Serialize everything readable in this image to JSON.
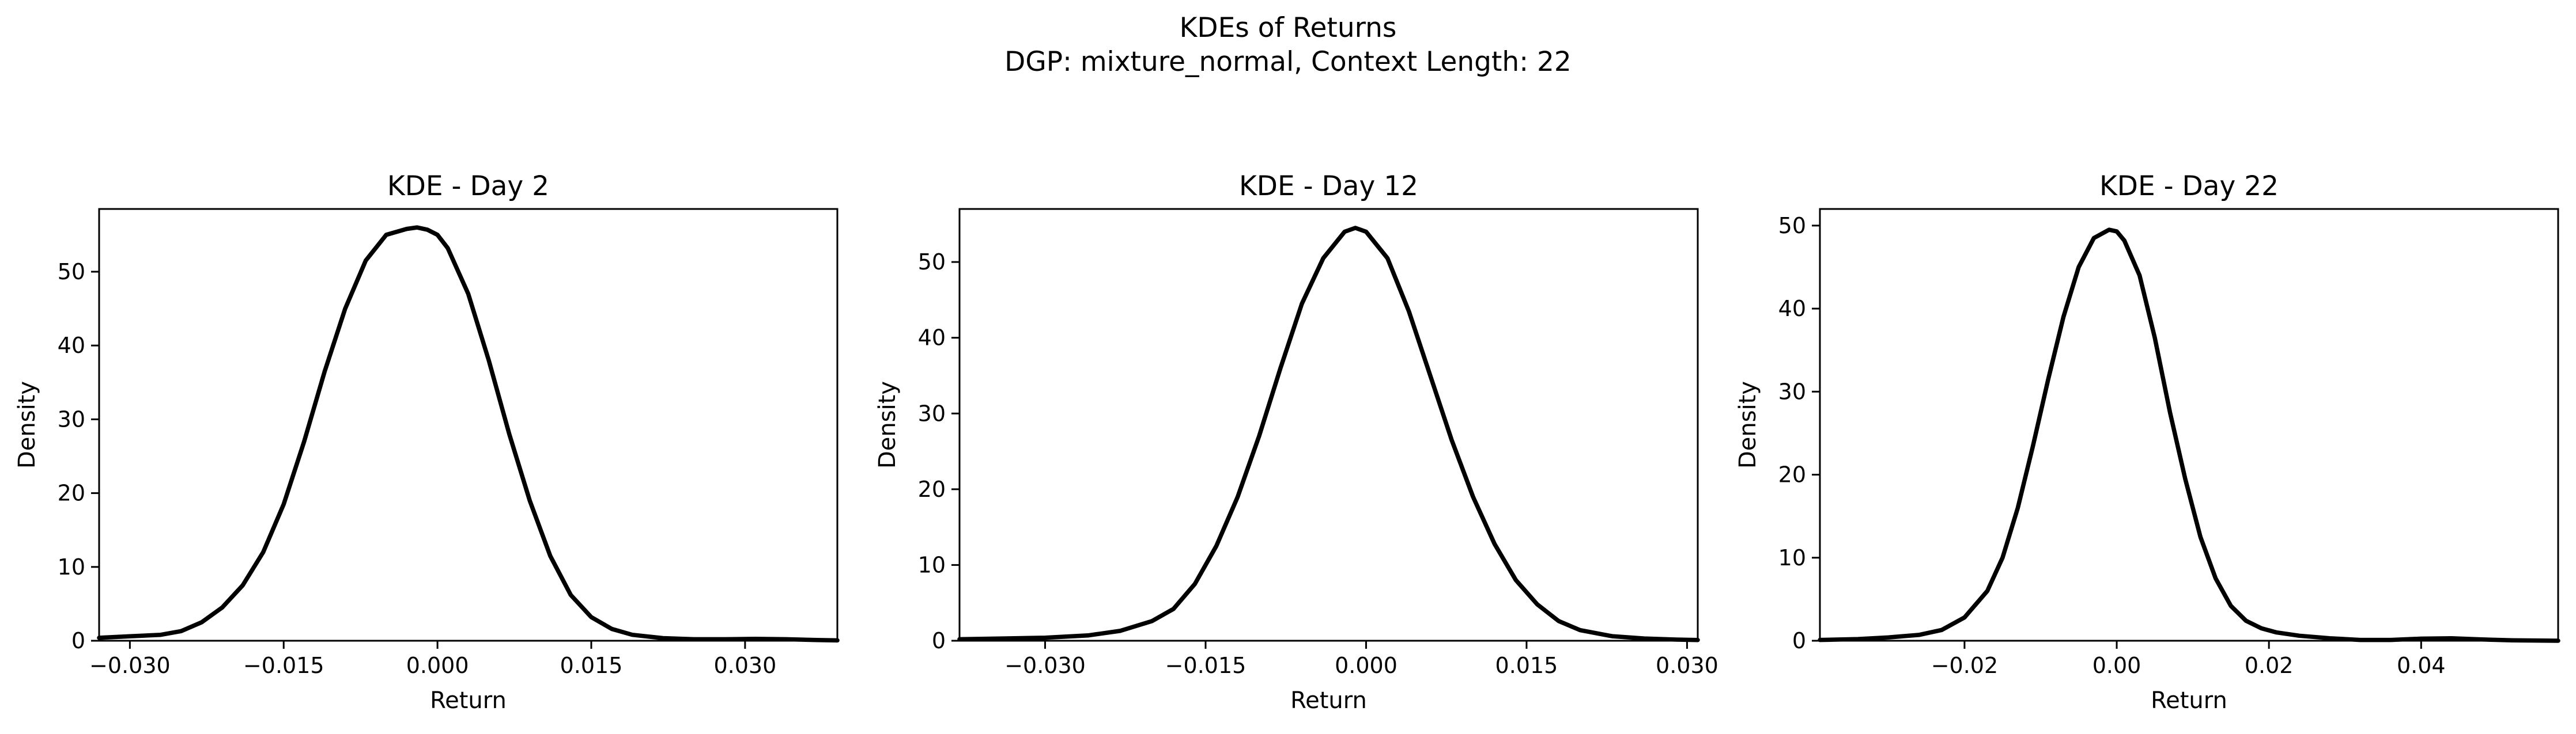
{
  "title_line1": "KDEs of Returns",
  "title_line2": "DGP: mixture_normal, Context Length: 22",
  "line_color": "#000000",
  "chart_data": [
    {
      "type": "line",
      "title": "KDE - Day 2",
      "xlabel": "Return",
      "ylabel": "Density",
      "xlim": [
        -0.033,
        0.039
      ],
      "ylim": [
        0,
        58.5
      ],
      "xticks": [
        -0.03,
        -0.015,
        0.0,
        0.015,
        0.03
      ],
      "xtick_labels": [
        "−0.030",
        "−0.015",
        "0.000",
        "0.015",
        "0.030"
      ],
      "yticks": [
        0,
        10,
        20,
        30,
        40,
        50
      ],
      "ytick_labels": [
        "0",
        "10",
        "20",
        "30",
        "40",
        "50"
      ],
      "grid": false,
      "series": [
        {
          "x": [
            -0.033,
            -0.03,
            -0.027,
            -0.025,
            -0.023,
            -0.021,
            -0.019,
            -0.017,
            -0.015,
            -0.013,
            -0.011,
            -0.009,
            -0.007,
            -0.005,
            -0.003,
            -0.002,
            -0.001,
            0.0,
            0.001,
            0.003,
            0.005,
            0.007,
            0.009,
            0.011,
            0.013,
            0.015,
            0.017,
            0.019,
            0.022,
            0.025,
            0.028,
            0.031,
            0.034,
            0.037,
            0.039
          ],
          "y": [
            0.4,
            0.6,
            0.8,
            1.3,
            2.5,
            4.5,
            7.5,
            12,
            18.5,
            27,
            36.5,
            45,
            51.5,
            55,
            55.8,
            56,
            55.7,
            55,
            53.2,
            47,
            38,
            28,
            19,
            11.5,
            6.2,
            3.2,
            1.6,
            0.8,
            0.35,
            0.2,
            0.2,
            0.25,
            0.2,
            0.1,
            0.05
          ]
        }
      ]
    },
    {
      "type": "line",
      "title": "KDE - Day 12",
      "xlabel": "Return",
      "ylabel": "Density",
      "xlim": [
        -0.038,
        0.031
      ],
      "ylim": [
        0,
        57
      ],
      "xticks": [
        -0.03,
        -0.015,
        0.0,
        0.015,
        0.03
      ],
      "xtick_labels": [
        "−0.030",
        "−0.015",
        "0.000",
        "0.015",
        "0.030"
      ],
      "yticks": [
        0,
        10,
        20,
        30,
        40,
        50
      ],
      "ytick_labels": [
        "0",
        "10",
        "20",
        "30",
        "40",
        "50"
      ],
      "grid": false,
      "series": [
        {
          "x": [
            -0.038,
            -0.034,
            -0.03,
            -0.026,
            -0.023,
            -0.02,
            -0.018,
            -0.016,
            -0.014,
            -0.012,
            -0.01,
            -0.008,
            -0.006,
            -0.004,
            -0.002,
            -0.001,
            0.0,
            0.002,
            0.004,
            0.006,
            0.008,
            0.01,
            0.012,
            0.014,
            0.016,
            0.018,
            0.02,
            0.023,
            0.026,
            0.029,
            0.031
          ],
          "y": [
            0.2,
            0.3,
            0.4,
            0.7,
            1.3,
            2.6,
            4.2,
            7.5,
            12.5,
            19,
            27,
            36,
            44.5,
            50.5,
            54,
            54.5,
            54,
            50.5,
            43.5,
            35,
            26.5,
            19,
            12.8,
            8,
            4.8,
            2.6,
            1.4,
            0.6,
            0.3,
            0.15,
            0.1
          ]
        }
      ]
    },
    {
      "type": "line",
      "title": "KDE - Day 22",
      "xlabel": "Return",
      "ylabel": "Density",
      "xlim": [
        -0.039,
        0.058
      ],
      "ylim": [
        0,
        52
      ],
      "xticks": [
        -0.02,
        0.0,
        0.02,
        0.04
      ],
      "xtick_labels": [
        "−0.02",
        "0.00",
        "0.02",
        "0.04"
      ],
      "yticks": [
        0,
        10,
        20,
        30,
        40,
        50
      ],
      "ytick_labels": [
        "0",
        "10",
        "20",
        "30",
        "40",
        "50"
      ],
      "grid": false,
      "series": [
        {
          "x": [
            -0.039,
            -0.034,
            -0.03,
            -0.026,
            -0.023,
            -0.02,
            -0.017,
            -0.015,
            -0.013,
            -0.011,
            -0.009,
            -0.007,
            -0.005,
            -0.003,
            -0.001,
            0.0,
            0.001,
            0.003,
            0.005,
            0.007,
            0.009,
            0.011,
            0.013,
            0.015,
            0.017,
            0.019,
            0.021,
            0.024,
            0.028,
            0.032,
            0.036,
            0.04,
            0.044,
            0.048,
            0.052,
            0.058
          ],
          "y": [
            0.1,
            0.2,
            0.4,
            0.7,
            1.3,
            2.8,
            6,
            10,
            16,
            23.5,
            31.5,
            39,
            45,
            48.5,
            49.5,
            49.3,
            48.2,
            44,
            36.5,
            27.5,
            19.5,
            12.5,
            7.5,
            4.2,
            2.4,
            1.5,
            1,
            0.6,
            0.3,
            0.1,
            0.1,
            0.25,
            0.3,
            0.15,
            0.05,
            0.0
          ]
        }
      ]
    }
  ]
}
